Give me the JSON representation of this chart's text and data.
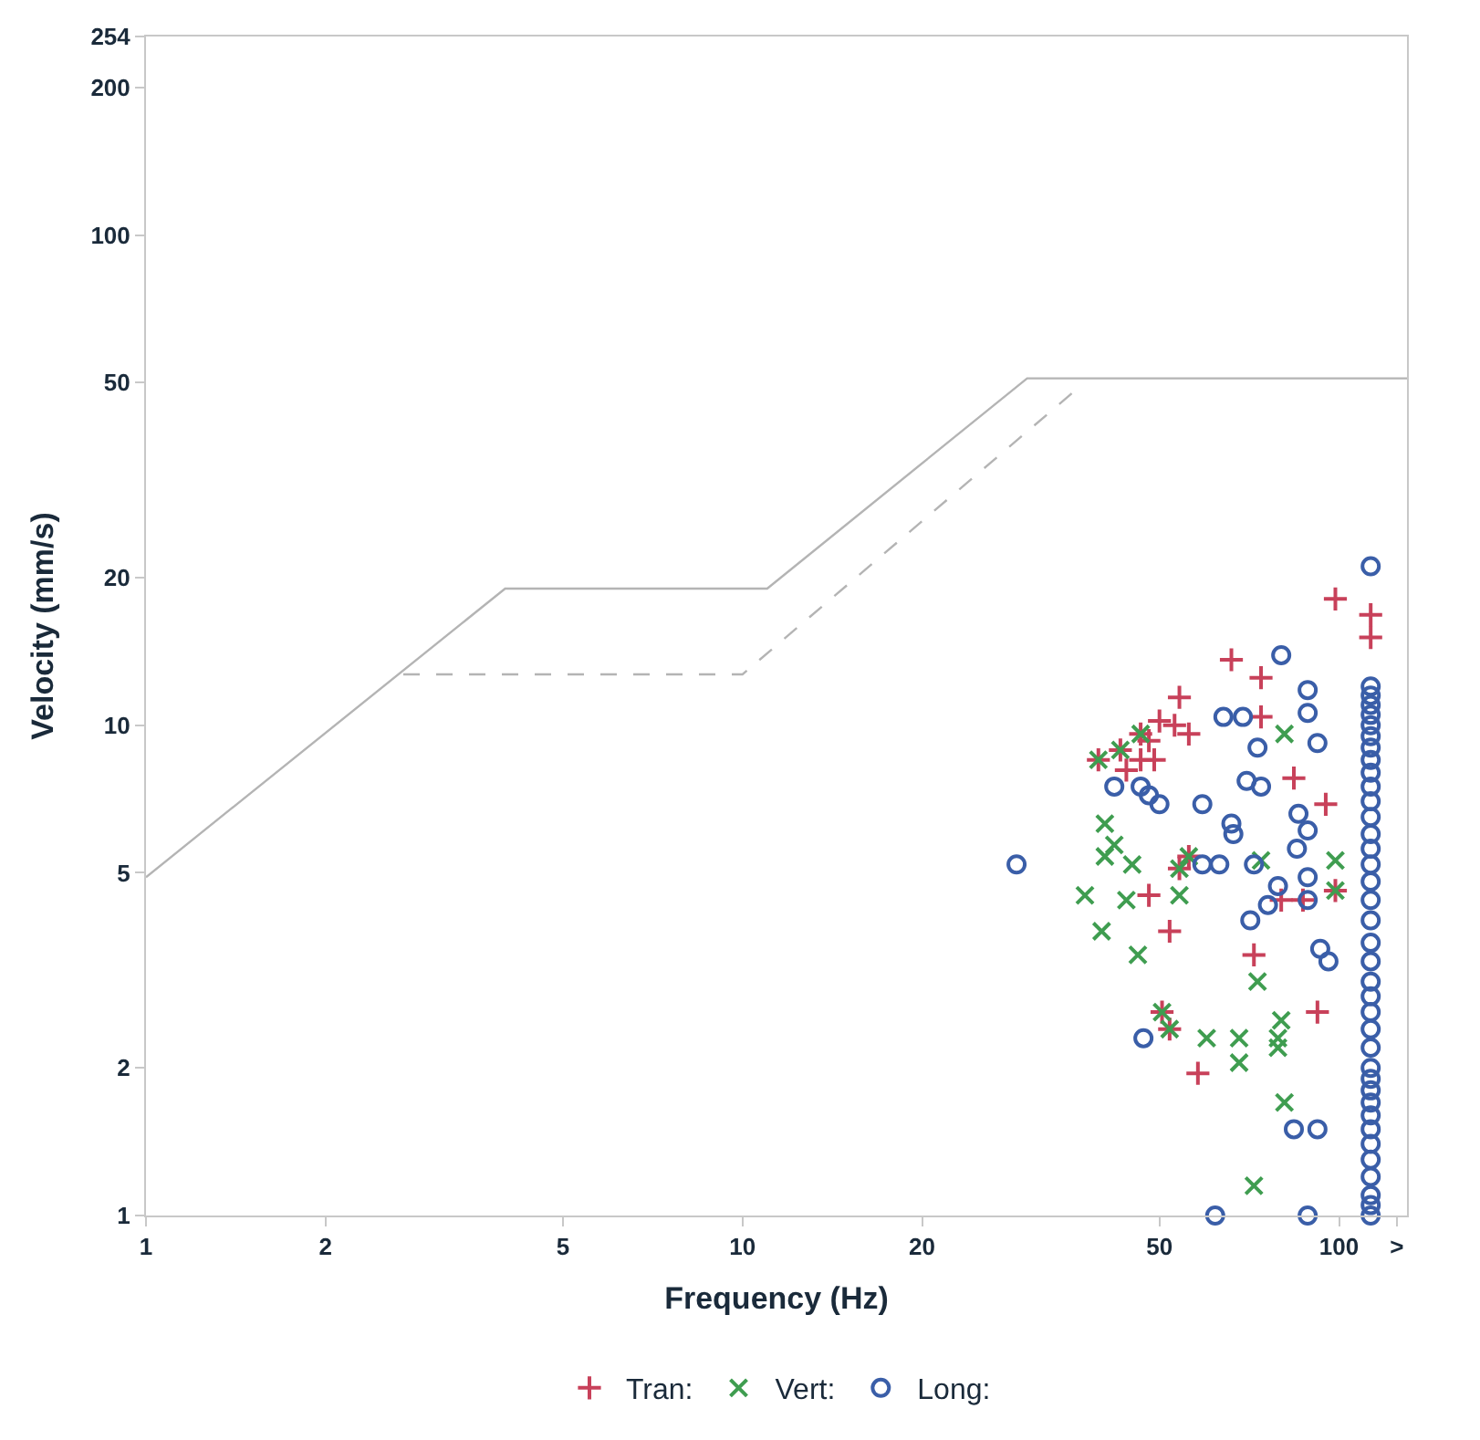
{
  "chart_data": {
    "type": "scatter",
    "xlabel": "Frequency (Hz)",
    "ylabel": "Velocity (mm/s)",
    "log": "xy",
    "grid": false,
    "legend": "bottom",
    "xlim": [
      1,
      130
    ],
    "xticks": [
      1,
      2,
      5,
      10,
      20,
      50,
      100,
      {
        "value": 125,
        "label": ">"
      }
    ],
    "ylim": [
      1,
      254
    ],
    "yticks": [
      1,
      2,
      5,
      10,
      20,
      50,
      100,
      200,
      254
    ],
    "series": [
      {
        "type": "line",
        "color": "#b4b4b4",
        "line_style": "solid",
        "marker": "none",
        "x": [
          1,
          4,
          11,
          30,
          130
        ],
        "values": [
          4.9,
          19,
          19,
          51,
          51
        ]
      },
      {
        "type": "line",
        "color": "#b4b4b4",
        "line_style": "dashed",
        "marker": "none",
        "x": [
          2.7,
          10,
          36
        ],
        "values": [
          12.7,
          12.7,
          48
        ]
      },
      {
        "name": "Tran:",
        "color": "#c8415a",
        "marker": "cross",
        "x": [
          98.6,
          113,
          113,
          66,
          54,
          74,
          74,
          53,
          56,
          50,
          48,
          46.5,
          49,
          44,
          84,
          95,
          80,
          48,
          52,
          72,
          92,
          58,
          87,
          39.5,
          43,
          46.5,
          54,
          56,
          50.5,
          52,
          98.6
        ],
        "values": [
          18.1,
          16.8,
          15.1,
          13.6,
          11.4,
          12.5,
          10.4,
          10,
          9.6,
          10.2,
          9.3,
          8.5,
          8.5,
          8.1,
          7.8,
          6.9,
          4.4,
          4.5,
          3.8,
          3.4,
          2.6,
          1.95,
          4.4,
          8.5,
          8.9,
          9.6,
          5.1,
          5.4,
          2.6,
          2.4,
          4.6
        ]
      },
      {
        "name": "Vert:",
        "color": "#3f9d50",
        "marker": "x",
        "x": [
          81,
          40.5,
          42,
          40.5,
          45,
          37.5,
          40,
          46,
          44,
          54,
          74,
          98.6,
          73,
          80,
          79,
          79,
          60,
          68,
          68,
          81,
          72,
          39.5,
          43,
          46.5,
          54,
          56,
          50.5,
          52,
          98.6
        ],
        "values": [
          9.6,
          6.3,
          5.7,
          5.4,
          5.2,
          4.5,
          3.8,
          3.4,
          4.4,
          4.5,
          5.3,
          5.3,
          3.0,
          2.5,
          2.3,
          2.2,
          2.3,
          2.3,
          2.05,
          1.7,
          1.15,
          8.5,
          8.9,
          9.6,
          5.1,
          5.4,
          2.6,
          2.4,
          4.6
        ]
      },
      {
        "name": "Long:",
        "color": "#3a5ea8",
        "marker": "circle",
        "x": [
          28.8,
          80,
          88.6,
          88.6,
          64,
          69,
          92,
          73,
          42,
          46.5,
          48,
          50,
          59,
          70,
          74,
          66,
          66.5,
          59,
          63,
          72,
          85,
          85.5,
          88.6,
          88.6,
          71,
          76,
          79,
          88.6,
          93,
          96,
          47,
          84,
          92,
          62,
          88.6,
          113,
          113,
          113,
          113,
          113,
          113,
          113,
          113,
          113,
          113,
          113,
          113,
          113,
          113,
          113,
          113,
          113,
          113,
          113,
          113,
          113,
          113,
          113,
          113,
          113,
          113,
          113,
          113,
          113,
          113,
          113,
          113,
          113,
          113,
          113,
          113,
          113,
          113
        ],
        "values": [
          5.2,
          13.9,
          11.8,
          10.6,
          10.4,
          10.4,
          9.2,
          9.0,
          7.5,
          7.5,
          7.2,
          6.9,
          6.9,
          7.7,
          7.5,
          6.3,
          6.0,
          5.2,
          5.2,
          5.2,
          5.6,
          6.6,
          6.1,
          4.9,
          4.0,
          4.3,
          4.7,
          4.4,
          3.5,
          3.3,
          2.3,
          1.5,
          1.5,
          1.0,
          1.0,
          1.0,
          1.05,
          1.1,
          1.2,
          1.3,
          1.4,
          1.5,
          1.6,
          1.7,
          1.8,
          1.9,
          2.0,
          2.2,
          2.4,
          2.6,
          2.8,
          3.0,
          3.3,
          3.6,
          4.0,
          4.4,
          4.8,
          5.2,
          5.6,
          6.0,
          6.5,
          7,
          7.5,
          8,
          8.5,
          9,
          9.5,
          10,
          10.5,
          11,
          11.5,
          12,
          21.1
        ]
      }
    ]
  }
}
